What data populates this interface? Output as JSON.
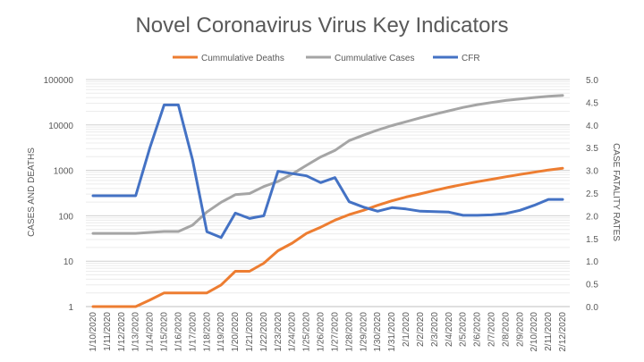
{
  "chart_data": {
    "type": "line",
    "title": "Novel Coronavirus Virus Key Indicators",
    "ylabel": "CASES AND DEATHS",
    "y2label": "CASE FATALITY RATES",
    "y_scale": "log",
    "ylim": [
      1,
      100000
    ],
    "y_ticks": [
      "1",
      "10",
      "100",
      "1000",
      "10000",
      "100000"
    ],
    "y2lim": [
      0,
      5
    ],
    "y2_ticks": [
      "0.0",
      "0.5",
      "1.0",
      "1.5",
      "2.0",
      "2.5",
      "3.0",
      "3.5",
      "4.0",
      "4.5",
      "5.0"
    ],
    "legend_position": "top",
    "grid": true,
    "x": [
      "1/10/2020",
      "1/11/2020",
      "1/12/2020",
      "1/13/2020",
      "1/14/2020",
      "1/15/2020",
      "1/16/2020",
      "1/17/2020",
      "1/18/2020",
      "1/19/2020",
      "1/20/2020",
      "1/21/2020",
      "1/22/2020",
      "1/23/2020",
      "1/24/2020",
      "1/25/2020",
      "1/26/2020",
      "1/27/2020",
      "1/28/2020",
      "1/29/2020",
      "1/30/2020",
      "1/31/2020",
      "2/1/2020",
      "2/2/2020",
      "2/3/2020",
      "2/4/2020",
      "2/5/2020",
      "2/6/2020",
      "2/7/2020",
      "2/8/2020",
      "2/9/2020",
      "2/10/2020",
      "2/11/2020",
      "2/12/2020"
    ],
    "series": [
      {
        "name": "Cummulative Deaths",
        "axis": "left",
        "color": "#ED7D31",
        "values": [
          1,
          1,
          1,
          1,
          1.4,
          2,
          2,
          2,
          2,
          3,
          6,
          6,
          9,
          17,
          25,
          41,
          56,
          80,
          106,
          132,
          170,
          213,
          259,
          304,
          361,
          425,
          490,
          563,
          636,
          722,
          811,
          908,
          1016,
          1113
        ]
      },
      {
        "name": "Cummulative Cases",
        "axis": "left",
        "color": "#A5A5A5",
        "values": [
          41,
          41,
          41,
          41,
          43,
          45,
          45,
          62,
          121,
          198,
          291,
          309,
          440,
          571,
          830,
          1287,
          1975,
          2744,
          4515,
          5974,
          7711,
          9692,
          11791,
          14380,
          17205,
          20438,
          24324,
          28018,
          31161,
          34546,
          37198,
          40171,
          42638,
          44653
        ]
      },
      {
        "name": "CFR",
        "axis": "right",
        "color": "#4472C4",
        "values": [
          2.44,
          2.44,
          2.44,
          2.44,
          3.5,
          4.44,
          4.44,
          3.23,
          1.65,
          1.52,
          2.06,
          1.94,
          2.0,
          2.98,
          2.93,
          2.88,
          2.73,
          2.84,
          2.31,
          2.19,
          2.1,
          2.18,
          2.15,
          2.1,
          2.09,
          2.08,
          2.01,
          2.01,
          2.02,
          2.05,
          2.12,
          2.23,
          2.36,
          2.36
        ]
      }
    ]
  }
}
